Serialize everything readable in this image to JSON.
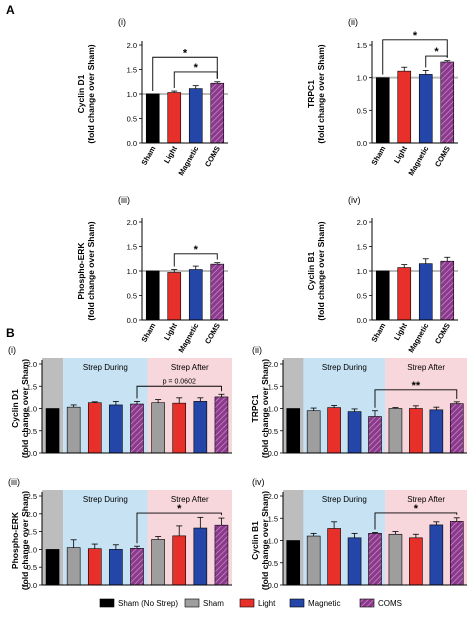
{
  "figure": {
    "panel_a": "A",
    "panel_b": "B",
    "section_labels": {
      "during": "Strep During",
      "after": "Strep After"
    }
  },
  "legend": [
    {
      "label": "Sham (No Strep)",
      "color": "#000000"
    },
    {
      "label": "Sham",
      "color": "#9e9e9e"
    },
    {
      "label": "Light",
      "color": "#e8302a"
    },
    {
      "label": "Magnetic",
      "color": "#2346a8"
    },
    {
      "label": "COMS",
      "color": "#8b3a8b",
      "hatch": true
    }
  ],
  "chart_data": [
    {
      "id": "A-i",
      "type": "bar",
      "roman": "(i)",
      "ylabel": "Cyclin D1\n(fold change over Sham)",
      "ylim": [
        0,
        2.0
      ],
      "yticks": [
        "0.0",
        "0.5",
        "1.0",
        "1.5",
        "2.0"
      ],
      "categories": [
        "Sham",
        "Light",
        "Magnetic",
        "COMS"
      ],
      "values": [
        1.0,
        1.03,
        1.11,
        1.22
      ],
      "errors": [
        0.0,
        0.03,
        0.06,
        0.03
      ],
      "colors": [
        "#000000",
        "#e8302a",
        "#2346a8",
        "#8b3a8b"
      ],
      "hatch": [
        false,
        false,
        false,
        true
      ],
      "reference_line": 1.0,
      "brackets": [
        {
          "from": 0,
          "to": 3,
          "y": 1.75,
          "label": "*"
        },
        {
          "from": 1,
          "to": 3,
          "y": 1.45,
          "label": "*"
        }
      ]
    },
    {
      "id": "A-ii",
      "type": "bar",
      "roman": "(ii)",
      "ylabel": "TRPC1\n(fold change over Sham)",
      "ylim": [
        0,
        1.5
      ],
      "yticks": [
        "0.0",
        "0.5",
        "1.0",
        "1.5"
      ],
      "categories": [
        "Sham",
        "Light",
        "Magnetic",
        "COMS"
      ],
      "values": [
        1.0,
        1.1,
        1.05,
        1.24
      ],
      "errors": [
        0.0,
        0.06,
        0.06,
        0.02
      ],
      "colors": [
        "#000000",
        "#e8302a",
        "#2346a8",
        "#8b3a8b"
      ],
      "hatch": [
        false,
        false,
        false,
        true
      ],
      "reference_line": 1.0,
      "brackets": [
        {
          "from": 0,
          "to": 3,
          "y": 1.58,
          "label": "*"
        },
        {
          "from": 2,
          "to": 3,
          "y": 1.33,
          "label": "*"
        }
      ]
    },
    {
      "id": "A-iii",
      "type": "bar",
      "roman": "(iii)",
      "ylabel": "Phospho-ERK\n(fold change over Sham)",
      "ylim": [
        0,
        2.0
      ],
      "yticks": [
        "0.0",
        "0.5",
        "1.0",
        "1.5",
        "2.0"
      ],
      "categories": [
        "Sham",
        "Light",
        "Magnetic",
        "COMS"
      ],
      "values": [
        1.0,
        0.97,
        1.03,
        1.14
      ],
      "errors": [
        0.0,
        0.06,
        0.07,
        0.03
      ],
      "colors": [
        "#000000",
        "#e8302a",
        "#2346a8",
        "#8b3a8b"
      ],
      "hatch": [
        false,
        false,
        false,
        true
      ],
      "reference_line": 1.0,
      "brackets": [
        {
          "from": 1,
          "to": 3,
          "y": 1.35,
          "label": "*"
        }
      ]
    },
    {
      "id": "A-iv",
      "type": "bar",
      "roman": "(iv)",
      "ylabel": "Cyclin B1\n(fold change over Sham)",
      "ylim": [
        0,
        2.0
      ],
      "yticks": [
        "0.0",
        "0.5",
        "1.0",
        "1.5",
        "2.0"
      ],
      "categories": [
        "Sham",
        "Light",
        "Magnetic",
        "COMS"
      ],
      "values": [
        1.0,
        1.07,
        1.15,
        1.2
      ],
      "errors": [
        0.0,
        0.06,
        0.1,
        0.08
      ],
      "colors": [
        "#000000",
        "#e8302a",
        "#2346a8",
        "#8b3a8b"
      ],
      "hatch": [
        false,
        false,
        false,
        true
      ],
      "reference_line": 1.0,
      "brackets": []
    },
    {
      "id": "B-i",
      "type": "bar",
      "roman": "(i)",
      "ylabel": "Cyclin D1\n(fold change over Sham)",
      "ylim": [
        0,
        2.0
      ],
      "yticks": [
        "0.0",
        "0.5",
        "1.0",
        "1.5",
        "2.0"
      ],
      "values": [
        1.0,
        1.03,
        1.13,
        1.08,
        1.1,
        1.13,
        1.12,
        1.16,
        1.26
      ],
      "errors": [
        0.0,
        0.05,
        0.02,
        0.08,
        0.06,
        0.07,
        0.12,
        0.08,
        0.06
      ],
      "colors": [
        "#000000",
        "#9e9e9e",
        "#e8302a",
        "#2346a8",
        "#8b3a8b",
        "#9e9e9e",
        "#e8302a",
        "#2346a8",
        "#8b3a8b"
      ],
      "hatch": [
        false,
        false,
        false,
        false,
        true,
        false,
        false,
        false,
        true
      ],
      "brackets": [
        {
          "from": 4,
          "to": 8,
          "y": 1.5,
          "label": "p = 0.0602"
        }
      ]
    },
    {
      "id": "B-ii",
      "type": "bar",
      "roman": "(ii)",
      "ylabel": "TRPC1\n(fold change over Sham)",
      "ylim": [
        0,
        2.0
      ],
      "yticks": [
        "0.0",
        "0.5",
        "1.0",
        "1.5",
        "2.0"
      ],
      "values": [
        1.0,
        0.95,
        1.02,
        0.93,
        0.82,
        1.0,
        1.0,
        0.97,
        1.11
      ],
      "errors": [
        0.0,
        0.06,
        0.05,
        0.06,
        0.13,
        0.02,
        0.06,
        0.06,
        0.04
      ],
      "colors": [
        "#000000",
        "#9e9e9e",
        "#e8302a",
        "#2346a8",
        "#8b3a8b",
        "#9e9e9e",
        "#e8302a",
        "#2346a8",
        "#8b3a8b"
      ],
      "hatch": [
        false,
        false,
        false,
        false,
        true,
        false,
        false,
        false,
        true
      ],
      "brackets": [
        {
          "from": 4,
          "to": 8,
          "y": 1.42,
          "label": "**"
        }
      ]
    },
    {
      "id": "B-iii",
      "type": "bar",
      "roman": "(iii)",
      "ylabel": "Phospho-ERK\n(fold change over Sham)",
      "ylim": [
        0,
        2.5
      ],
      "yticks": [
        "0.0",
        "0.5",
        "1.0",
        "1.5",
        "2.0",
        "2.5"
      ],
      "values": [
        1.0,
        1.05,
        1.02,
        1.0,
        1.03,
        1.28,
        1.38,
        1.6,
        1.68
      ],
      "errors": [
        0.0,
        0.22,
        0.13,
        0.13,
        0.06,
        0.08,
        0.28,
        0.3,
        0.2
      ],
      "colors": [
        "#000000",
        "#9e9e9e",
        "#e8302a",
        "#2346a8",
        "#8b3a8b",
        "#9e9e9e",
        "#e8302a",
        "#2346a8",
        "#8b3a8b"
      ],
      "hatch": [
        false,
        false,
        false,
        false,
        true,
        false,
        false,
        false,
        true
      ],
      "brackets": [
        {
          "from": 4,
          "to": 8,
          "y": 2.02,
          "label": "*"
        }
      ]
    },
    {
      "id": "B-iv",
      "type": "bar",
      "roman": "(iv)",
      "ylabel": "Cyclin B1\n(fold change over Sham)",
      "ylim": [
        0,
        2.0
      ],
      "yticks": [
        "0.0",
        "0.5",
        "1.0",
        "1.5",
        "2.0"
      ],
      "values": [
        1.0,
        1.1,
        1.27,
        1.06,
        1.16,
        1.14,
        1.06,
        1.35,
        1.43
      ],
      "errors": [
        0.0,
        0.06,
        0.15,
        0.1,
        0.02,
        0.06,
        0.08,
        0.07,
        0.08
      ],
      "colors": [
        "#000000",
        "#9e9e9e",
        "#e8302a",
        "#2346a8",
        "#8b3a8b",
        "#9e9e9e",
        "#e8302a",
        "#2346a8",
        "#8b3a8b"
      ],
      "hatch": [
        false,
        false,
        false,
        false,
        true,
        false,
        false,
        false,
        true
      ],
      "brackets": [
        {
          "from": 4,
          "to": 8,
          "y": 1.62,
          "label": "*"
        }
      ]
    }
  ]
}
